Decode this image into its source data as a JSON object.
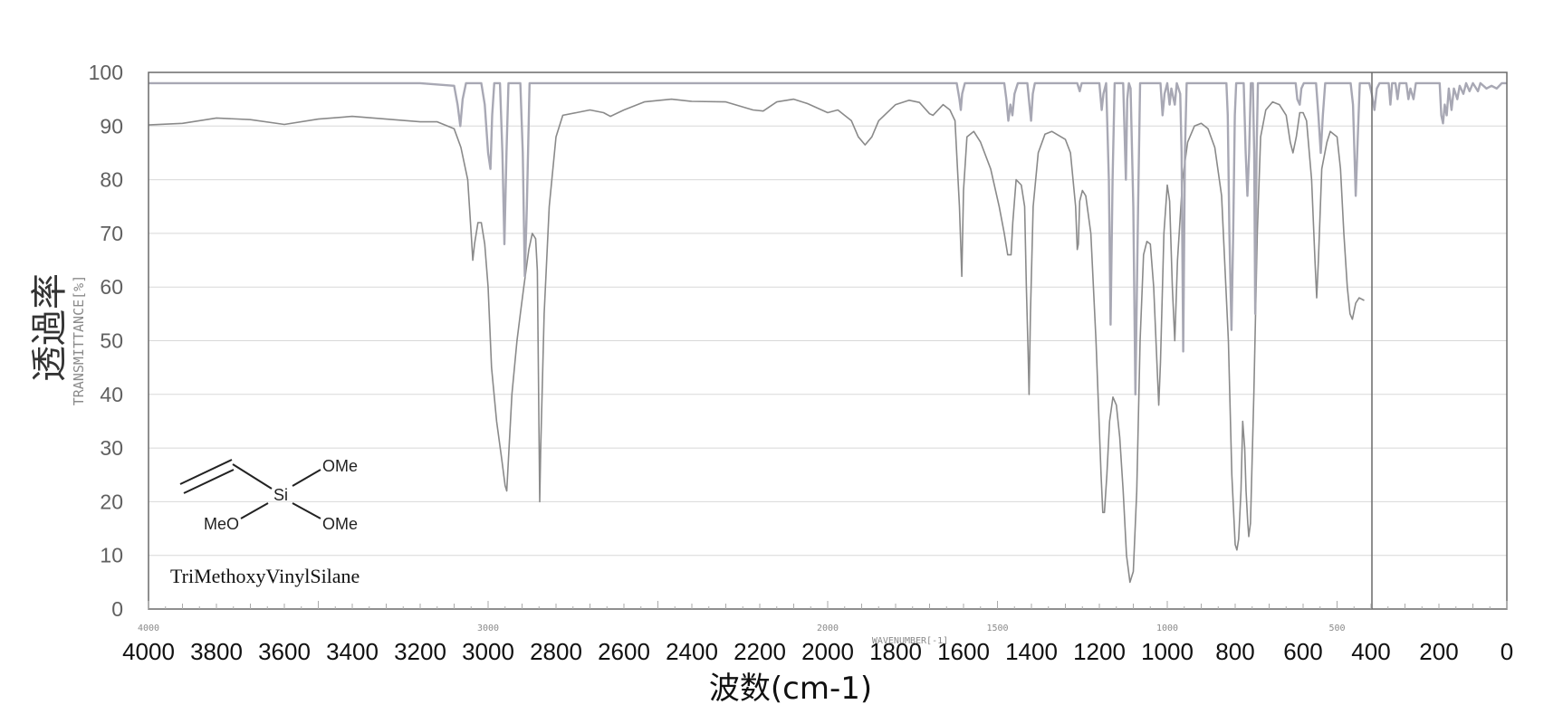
{
  "chart_data": {
    "type": "line",
    "xlabel": "波数(cm-1)",
    "ylabel": "透過率",
    "inner_ylabel": "TRANSMITTANCE[%]",
    "inner_xlabel": "WAVENUMBER[-1]",
    "xlim": [
      4000,
      0
    ],
    "ylim": [
      0,
      100
    ],
    "x_ticks": [
      4000,
      3800,
      3600,
      3400,
      3200,
      3000,
      2800,
      2600,
      2400,
      2200,
      2000,
      1800,
      1600,
      1400,
      1200,
      1000,
      800,
      600,
      400,
      200,
      0
    ],
    "y_ticks": [
      0,
      10,
      20,
      30,
      40,
      50,
      60,
      70,
      80,
      90,
      100
    ],
    "inner_x_ticks": [
      "4000",
      "3000",
      "2000",
      "1500",
      "1000",
      "500"
    ],
    "grid": true,
    "compound_name": "TriMethoxyVinylSilane",
    "structure_labels": {
      "si": "Si",
      "ome_upper": "OMe",
      "ome_lower": "OMe",
      "meo": "MeO"
    },
    "series": [
      {
        "color": "#8a8a8a",
        "points": [
          [
            4000,
            90.2
          ],
          [
            3900,
            90.5
          ],
          [
            3800,
            91.5
          ],
          [
            3700,
            91.2
          ],
          [
            3600,
            90.3
          ],
          [
            3500,
            91.3
          ],
          [
            3400,
            91.8
          ],
          [
            3300,
            91.3
          ],
          [
            3200,
            90.8
          ],
          [
            3150,
            90.8
          ],
          [
            3100,
            89.5
          ],
          [
            3080,
            86
          ],
          [
            3060,
            80
          ],
          [
            3050,
            70
          ],
          [
            3045,
            65
          ],
          [
            3040,
            68
          ],
          [
            3030,
            72
          ],
          [
            3020,
            72
          ],
          [
            3010,
            68
          ],
          [
            3000,
            60
          ],
          [
            2990,
            45
          ],
          [
            2975,
            35
          ],
          [
            2960,
            28
          ],
          [
            2950,
            23
          ],
          [
            2945,
            22
          ],
          [
            2940,
            28
          ],
          [
            2930,
            40
          ],
          [
            2915,
            50
          ],
          [
            2905,
            55
          ],
          [
            2895,
            60
          ],
          [
            2880,
            67
          ],
          [
            2870,
            70
          ],
          [
            2860,
            69
          ],
          [
            2855,
            63
          ],
          [
            2852,
            45
          ],
          [
            2848,
            20
          ],
          [
            2845,
            30
          ],
          [
            2835,
            55
          ],
          [
            2820,
            75
          ],
          [
            2800,
            88
          ],
          [
            2780,
            92
          ],
          [
            2740,
            92.5
          ],
          [
            2700,
            93
          ],
          [
            2660,
            92.5
          ],
          [
            2640,
            91.8
          ],
          [
            2600,
            93
          ],
          [
            2540,
            94.5
          ],
          [
            2460,
            95
          ],
          [
            2400,
            94.6
          ],
          [
            2300,
            94.5
          ],
          [
            2220,
            93
          ],
          [
            2190,
            92.8
          ],
          [
            2150,
            94.5
          ],
          [
            2100,
            95
          ],
          [
            2060,
            94.2
          ],
          [
            2000,
            92.5
          ],
          [
            1970,
            93
          ],
          [
            1930,
            91
          ],
          [
            1910,
            88
          ],
          [
            1890,
            86.5
          ],
          [
            1870,
            88
          ],
          [
            1850,
            91
          ],
          [
            1800,
            94
          ],
          [
            1760,
            94.8
          ],
          [
            1730,
            94.4
          ],
          [
            1700,
            92.3
          ],
          [
            1690,
            92
          ],
          [
            1660,
            94
          ],
          [
            1640,
            93
          ],
          [
            1625,
            91
          ],
          [
            1612,
            75
          ],
          [
            1605,
            62
          ],
          [
            1600,
            78
          ],
          [
            1590,
            88
          ],
          [
            1570,
            89
          ],
          [
            1550,
            87
          ],
          [
            1520,
            82
          ],
          [
            1495,
            75
          ],
          [
            1480,
            70
          ],
          [
            1470,
            66
          ],
          [
            1460,
            66
          ],
          [
            1455,
            72
          ],
          [
            1445,
            80
          ],
          [
            1430,
            79
          ],
          [
            1420,
            75
          ],
          [
            1415,
            60
          ],
          [
            1410,
            48
          ],
          [
            1407,
            40
          ],
          [
            1403,
            55
          ],
          [
            1395,
            75
          ],
          [
            1380,
            85
          ],
          [
            1360,
            88.5
          ],
          [
            1340,
            89
          ],
          [
            1300,
            87.5
          ],
          [
            1285,
            85
          ],
          [
            1270,
            75
          ],
          [
            1265,
            67
          ],
          [
            1262,
            68
          ],
          [
            1258,
            76
          ],
          [
            1250,
            78
          ],
          [
            1240,
            77
          ],
          [
            1225,
            70
          ],
          [
            1210,
            50
          ],
          [
            1195,
            25
          ],
          [
            1190,
            18
          ],
          [
            1185,
            18
          ],
          [
            1178,
            25
          ],
          [
            1170,
            35
          ],
          [
            1160,
            39.5
          ],
          [
            1150,
            38
          ],
          [
            1140,
            32
          ],
          [
            1130,
            22
          ],
          [
            1120,
            10
          ],
          [
            1110,
            5
          ],
          [
            1100,
            7
          ],
          [
            1090,
            22
          ],
          [
            1080,
            50
          ],
          [
            1070,
            66
          ],
          [
            1060,
            68.5
          ],
          [
            1050,
            68
          ],
          [
            1040,
            60
          ],
          [
            1030,
            45
          ],
          [
            1025,
            38
          ],
          [
            1020,
            46
          ],
          [
            1010,
            70
          ],
          [
            1000,
            79
          ],
          [
            993,
            76
          ],
          [
            985,
            60
          ],
          [
            978,
            50
          ],
          [
            970,
            65
          ],
          [
            955,
            80
          ],
          [
            940,
            87
          ],
          [
            920,
            90
          ],
          [
            900,
            90.5
          ],
          [
            880,
            89.5
          ],
          [
            860,
            86
          ],
          [
            840,
            77
          ],
          [
            820,
            50
          ],
          [
            810,
            25
          ],
          [
            800,
            12
          ],
          [
            795,
            11
          ],
          [
            790,
            13
          ],
          [
            783,
            22
          ],
          [
            778,
            35
          ],
          [
            772,
            30
          ],
          [
            768,
            22
          ],
          [
            763,
            16
          ],
          [
            760,
            13.5
          ],
          [
            755,
            16
          ],
          [
            745,
            40
          ],
          [
            735,
            70
          ],
          [
            725,
            88
          ],
          [
            710,
            93
          ],
          [
            690,
            94.5
          ],
          [
            670,
            94
          ],
          [
            650,
            92
          ],
          [
            638,
            87
          ],
          [
            630,
            85
          ],
          [
            620,
            88
          ],
          [
            610,
            92.5
          ],
          [
            600,
            92.5
          ],
          [
            590,
            91
          ],
          [
            575,
            80
          ],
          [
            565,
            65
          ],
          [
            560,
            58
          ],
          [
            555,
            65
          ],
          [
            545,
            82
          ],
          [
            530,
            87
          ],
          [
            520,
            89
          ],
          [
            500,
            88
          ],
          [
            490,
            82
          ],
          [
            480,
            70
          ],
          [
            470,
            60
          ],
          [
            462,
            55
          ],
          [
            455,
            54
          ],
          [
            445,
            57
          ],
          [
            435,
            58
          ],
          [
            420,
            57.5
          ]
        ]
      },
      {
        "color": "#a8a8b4",
        "points": [
          [
            4000,
            98
          ],
          [
            3200,
            98
          ],
          [
            3100,
            97.5
          ],
          [
            3090,
            94
          ],
          [
            3082,
            90
          ],
          [
            3075,
            95
          ],
          [
            3065,
            98
          ],
          [
            3020,
            98
          ],
          [
            3010,
            94
          ],
          [
            3000,
            85
          ],
          [
            2993,
            82
          ],
          [
            2988,
            92
          ],
          [
            2982,
            98
          ],
          [
            2965,
            98
          ],
          [
            2958,
            85
          ],
          [
            2952,
            68
          ],
          [
            2946,
            85
          ],
          [
            2940,
            98
          ],
          [
            2905,
            98
          ],
          [
            2898,
            85
          ],
          [
            2892,
            62
          ],
          [
            2886,
            75
          ],
          [
            2878,
            98
          ],
          [
            2850,
            98
          ],
          [
            1620,
            98
          ],
          [
            1612,
            95
          ],
          [
            1608,
            93
          ],
          [
            1604,
            96
          ],
          [
            1596,
            98
          ],
          [
            1480,
            98
          ],
          [
            1474,
            95
          ],
          [
            1468,
            91
          ],
          [
            1462,
            94
          ],
          [
            1456,
            92
          ],
          [
            1450,
            96
          ],
          [
            1440,
            98
          ],
          [
            1412,
            98
          ],
          [
            1406,
            94
          ],
          [
            1401,
            91
          ],
          [
            1396,
            96
          ],
          [
            1390,
            98
          ],
          [
            1265,
            98
          ],
          [
            1258,
            96.5
          ],
          [
            1252,
            98
          ],
          [
            1200,
            98
          ],
          [
            1193,
            93
          ],
          [
            1188,
            96
          ],
          [
            1180,
            98
          ],
          [
            1172,
            80
          ],
          [
            1167,
            53
          ],
          [
            1161,
            80
          ],
          [
            1155,
            98
          ],
          [
            1130,
            98
          ],
          [
            1122,
            80
          ],
          [
            1118,
            95
          ],
          [
            1113,
            98
          ],
          [
            1108,
            97
          ],
          [
            1100,
            75
          ],
          [
            1094,
            40
          ],
          [
            1086,
            75
          ],
          [
            1080,
            98
          ],
          [
            1020,
            98
          ],
          [
            1014,
            92
          ],
          [
            1008,
            96
          ],
          [
            1000,
            98
          ],
          [
            993,
            94
          ],
          [
            988,
            97
          ],
          [
            978,
            94
          ],
          [
            972,
            98
          ],
          [
            962,
            96
          ],
          [
            958,
            85
          ],
          [
            953,
            48
          ],
          [
            948,
            85
          ],
          [
            943,
            98
          ],
          [
            826,
            98
          ],
          [
            822,
            92
          ],
          [
            817,
            70
          ],
          [
            811,
            52
          ],
          [
            806,
            70
          ],
          [
            801,
            92
          ],
          [
            797,
            98
          ],
          [
            775,
            98
          ],
          [
            769,
            85
          ],
          [
            764,
            77
          ],
          [
            759,
            85
          ],
          [
            754,
            98
          ],
          [
            748,
            98
          ],
          [
            744,
            85
          ],
          [
            741,
            55
          ],
          [
            737,
            85
          ],
          [
            733,
            98
          ],
          [
            622,
            98
          ],
          [
            617,
            95
          ],
          [
            610,
            94
          ],
          [
            605,
            97
          ],
          [
            598,
            98
          ],
          [
            562,
            98
          ],
          [
            555,
            92
          ],
          [
            548,
            85
          ],
          [
            542,
            92
          ],
          [
            535,
            98
          ],
          [
            460,
            98
          ],
          [
            453,
            94
          ],
          [
            445,
            77
          ],
          [
            439,
            88
          ],
          [
            433,
            98
          ],
          [
            405,
            98
          ],
          [
            398,
            96
          ],
          [
            390,
            93
          ],
          [
            383,
            97
          ],
          [
            375,
            98
          ],
          [
            348,
            98
          ],
          [
            343,
            94
          ],
          [
            338,
            98
          ],
          [
            328,
            98
          ],
          [
            322,
            95
          ],
          [
            316,
            98
          ],
          [
            296,
            98
          ],
          [
            290,
            95
          ],
          [
            284,
            97
          ],
          [
            275,
            95
          ],
          [
            268,
            98
          ],
          [
            198,
            98
          ],
          [
            193,
            92
          ],
          [
            188,
            90.5
          ],
          [
            183,
            94
          ],
          [
            177,
            92
          ],
          [
            171,
            97
          ],
          [
            163,
            93
          ],
          [
            156,
            97
          ],
          [
            146,
            95
          ],
          [
            139,
            97.5
          ],
          [
            128,
            96
          ],
          [
            120,
            98
          ],
          [
            110,
            96.5
          ],
          [
            100,
            98
          ],
          [
            85,
            96.5
          ],
          [
            78,
            98
          ],
          [
            60,
            97
          ],
          [
            45,
            97.5
          ],
          [
            30,
            97
          ],
          [
            15,
            98
          ],
          [
            0,
            98
          ]
        ]
      }
    ]
  }
}
